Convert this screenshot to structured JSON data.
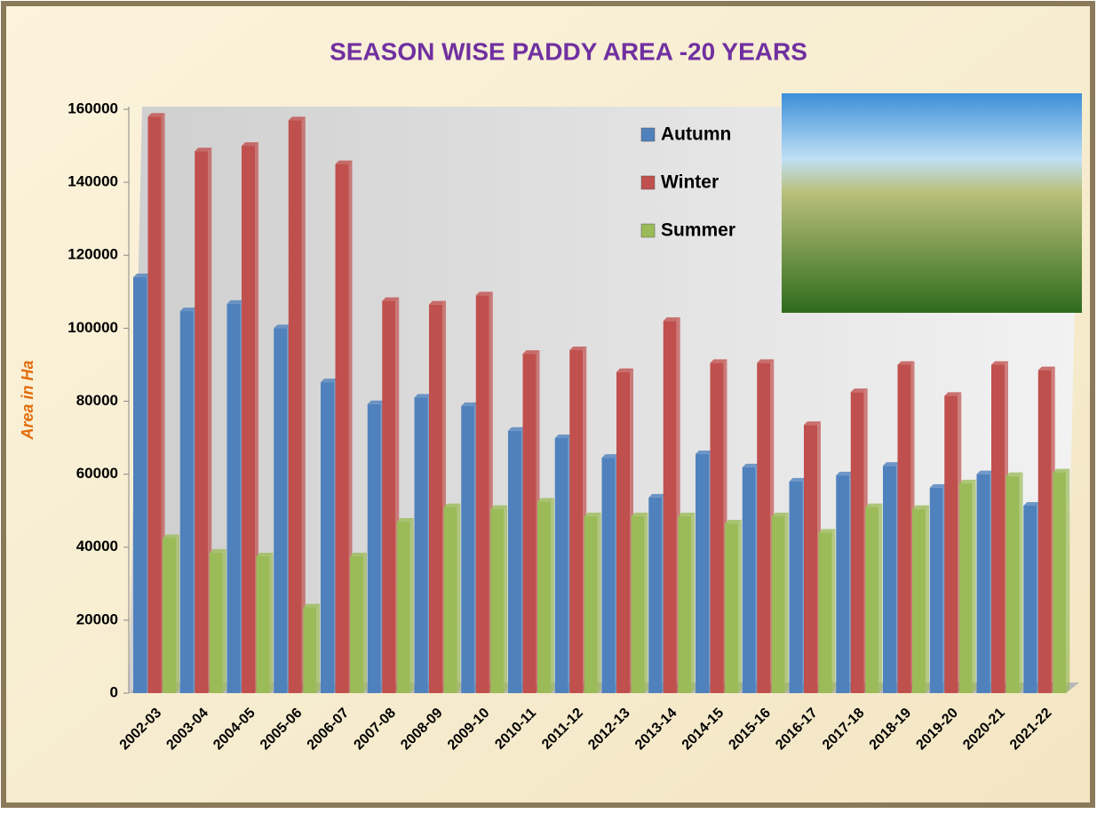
{
  "chart_data": {
    "type": "bar",
    "title": "SEASON WISE PADDY AREA -20 YEARS",
    "y_label": "Area in Ha",
    "categories": [
      "2002-03",
      "2003-04",
      "2004-05",
      "2005-06",
      "2006-07",
      "2007-08",
      "2008-09",
      "2009-10",
      "2010-11",
      "2011-12",
      "2012-13",
      "2013-14",
      "2014-15",
      "2015-16",
      "2016-17",
      "2017-18",
      "2018-19",
      "2019-20",
      "2020-21",
      "2021-22"
    ],
    "series": [
      {
        "name": "Autumn",
        "color": "#4f81bd",
        "values": [
          114000,
          104700,
          106700,
          100000,
          85200,
          79200,
          81000,
          78700,
          71900,
          69900,
          64500,
          53600,
          65500,
          61900,
          58000,
          59700,
          62300,
          56300,
          60000,
          51400
        ]
      },
      {
        "name": "Winter",
        "color": "#c0504d",
        "values": [
          158000,
          148500,
          150000,
          157000,
          145000,
          107500,
          106500,
          109000,
          93000,
          94000,
          88000,
          102000,
          90500,
          90500,
          73500,
          82500,
          90000,
          81500,
          90000,
          88500
        ]
      },
      {
        "name": "Summer",
        "color": "#9bbb59",
        "values": [
          42500,
          38500,
          37500,
          23500,
          37500,
          47000,
          51000,
          50500,
          52500,
          48500,
          48500,
          48500,
          46500,
          48500,
          44000,
          51000,
          50500,
          57500,
          59500,
          60500
        ]
      }
    ],
    "ylim": [
      0,
      160000
    ],
    "yticks": [
      0,
      20000,
      40000,
      60000,
      80000,
      100000,
      120000,
      140000,
      160000
    ]
  }
}
